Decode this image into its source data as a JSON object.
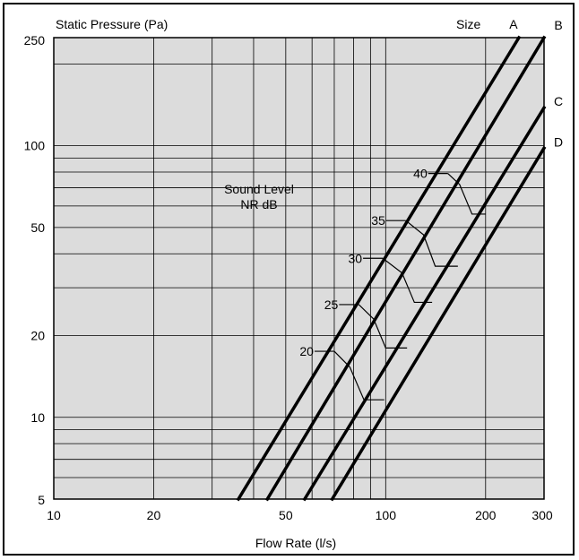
{
  "chart_data": {
    "type": "line",
    "title": "",
    "ylabel": "Static Pressure (Pa)",
    "xlabel": "Flow Rate (l/s)",
    "x_scale": "log",
    "y_scale": "log",
    "xlim": [
      10,
      300
    ],
    "ylim": [
      5,
      250
    ],
    "x_ticks": [
      10,
      20,
      50,
      100,
      200,
      300
    ],
    "y_ticks": [
      5,
      10,
      20,
      50,
      100,
      250
    ],
    "x_tick_labels": [
      "10",
      "20",
      "50",
      "100",
      "200",
      "300"
    ],
    "y_tick_labels": [
      "5",
      "10",
      "20",
      "50",
      "100",
      "250"
    ],
    "grid": true,
    "background": "#dcdcdc",
    "line_color": "#000000",
    "size_header": "Size",
    "sound_label_line1": "Sound Level",
    "sound_label_line2": "NR  dB",
    "series": [
      {
        "name": "A",
        "x": [
          36,
          252
        ],
        "y": [
          5,
          250
        ]
      },
      {
        "name": "B",
        "x": [
          44,
          300
        ],
        "y": [
          5,
          250
        ]
      },
      {
        "name": "C",
        "x": [
          57,
          300
        ],
        "y": [
          5,
          138
        ]
      },
      {
        "name": "D",
        "x": [
          69,
          300
        ],
        "y": [
          5,
          98
        ]
      }
    ],
    "nr_levels": [
      {
        "label": "40",
        "points": [
          [
            154,
            79
          ],
          [
            167,
            72
          ],
          [
            182,
            56
          ],
          [
            200,
            56
          ]
        ]
      },
      {
        "label": "35",
        "points": [
          [
            115,
            53
          ],
          [
            130,
            47
          ],
          [
            141,
            36
          ],
          [
            165,
            36
          ]
        ]
      },
      {
        "label": "30",
        "points": [
          [
            98,
            38.5
          ],
          [
            112,
            34
          ],
          [
            122,
            26.5
          ],
          [
            138,
            26.5
          ]
        ]
      },
      {
        "label": "25",
        "points": [
          [
            83,
            26
          ],
          [
            92,
            23
          ],
          [
            100,
            18
          ],
          [
            116,
            18
          ]
        ]
      },
      {
        "label": "20",
        "points": [
          [
            70,
            17.5
          ],
          [
            78,
            15.3
          ],
          [
            86,
            11.6
          ],
          [
            99,
            11.6
          ]
        ]
      }
    ]
  }
}
